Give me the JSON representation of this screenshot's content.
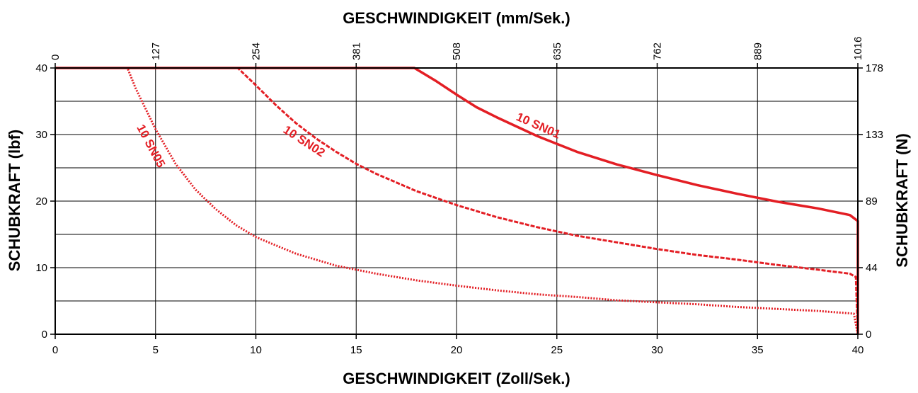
{
  "chart_data": {
    "type": "line",
    "title": "",
    "xlabel": "GESCHWINDIGKEIT (Zoll/Sek.)",
    "x2label": "GESCHWINDIGKEIT (mm/Sek.)",
    "ylabel": "SCHUBKRAFT (lbf)",
    "y2label": "SCHUBKRAFT (N)",
    "xlim": [
      0,
      40
    ],
    "ylim": [
      0,
      40
    ],
    "x_ticks": [
      0,
      5,
      10,
      15,
      20,
      25,
      30,
      35,
      40
    ],
    "x_tick_labels": [
      "0",
      "5",
      "10",
      "15",
      "20",
      "25",
      "30",
      "35",
      "40"
    ],
    "x2_ticks": [
      0,
      5,
      10,
      15,
      20,
      25,
      30,
      35,
      40
    ],
    "x2_tick_labels": [
      "0",
      "127",
      "254",
      "381",
      "508",
      "635",
      "762",
      "889",
      "1016"
    ],
    "y_ticks": [
      0,
      10,
      20,
      30,
      40
    ],
    "y_tick_labels": [
      "0",
      "10",
      "20",
      "30",
      "40"
    ],
    "y2_ticks": [
      0,
      10,
      20,
      30,
      40
    ],
    "y2_tick_labels": [
      "0",
      "44",
      "89",
      "133",
      "178"
    ],
    "grid": true,
    "grid_y_step": 5,
    "series_color": "#e31e24",
    "series": [
      {
        "name": "10 SN01",
        "style": "solid",
        "label_at": [
          24,
          30.8
        ],
        "x": [
          0,
          17.9,
          19,
          20,
          21,
          22,
          24,
          26,
          28,
          30,
          32,
          34,
          36,
          38,
          39.6,
          40,
          40
        ],
        "y": [
          40,
          40,
          38,
          36,
          34.1,
          32.6,
          29.8,
          27.4,
          25.5,
          23.9,
          22.4,
          21.1,
          19.9,
          18.9,
          17.9,
          17,
          0
        ]
      },
      {
        "name": "10 SN02",
        "style": "dashed",
        "label_at": [
          12.3,
          28.5
        ],
        "x": [
          0,
          9.1,
          10,
          11,
          12,
          13,
          14,
          15,
          16,
          18,
          20,
          22,
          24,
          26,
          28,
          30,
          32,
          34,
          36,
          38,
          39.6,
          39.9,
          40
        ],
        "y": [
          40,
          40,
          37.4,
          34.4,
          31.7,
          29.4,
          27.4,
          25.6,
          24.1,
          21.5,
          19.4,
          17.6,
          16.1,
          14.8,
          13.8,
          12.8,
          11.9,
          11.2,
          10.4,
          9.7,
          9.1,
          8.6,
          0
        ]
      },
      {
        "name": "10 SN05",
        "style": "dotted",
        "label_at": [
          4.6,
          28
        ],
        "x": [
          0,
          3.6,
          4,
          5,
          6,
          7,
          8,
          9,
          10,
          12,
          14,
          16,
          18,
          20,
          22,
          24,
          26,
          28,
          30,
          32,
          34,
          36,
          38,
          39.8,
          40
        ],
        "y": [
          40,
          40,
          37,
          30.8,
          25.6,
          21.7,
          18.8,
          16.4,
          14.6,
          12.1,
          10.3,
          9.1,
          8.1,
          7.3,
          6.6,
          6.0,
          5.6,
          5.1,
          4.8,
          4.5,
          4.1,
          3.8,
          3.5,
          3.1,
          0
        ]
      }
    ]
  }
}
